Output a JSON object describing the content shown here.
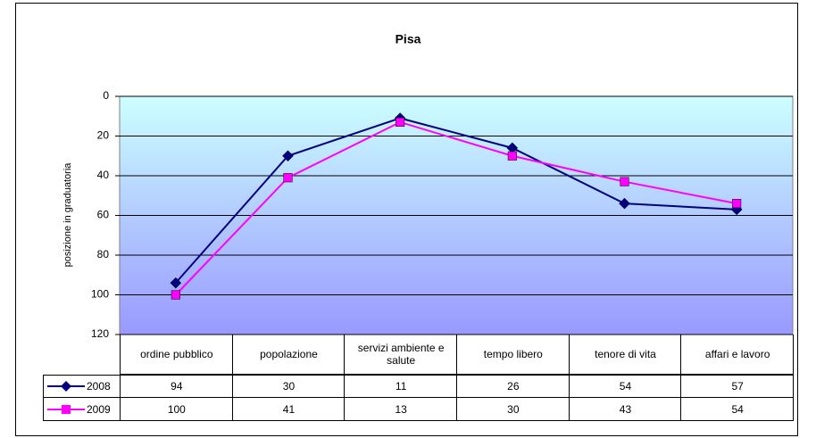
{
  "chart_data": {
    "type": "line",
    "title": "Pisa",
    "y_label": "posizione in graduatoria",
    "categories": [
      "ordine pubblico",
      "popolazione",
      "servizi ambiente e salute",
      "tempo libero",
      "tenore di vita",
      "affari e lavoro"
    ],
    "series": [
      {
        "name": "2008",
        "color": "#000080",
        "marker": "diamond",
        "values": [
          94,
          30,
          11,
          26,
          54,
          57
        ]
      },
      {
        "name": "2009",
        "color": "#ff00ff",
        "marker": "square",
        "values": [
          100,
          41,
          13,
          30,
          43,
          54
        ]
      }
    ],
    "ylim": [
      0,
      120
    ],
    "y_reversed": true,
    "yticks": [
      0,
      20,
      40,
      60,
      80,
      100,
      120
    ],
    "grid": true,
    "data_table": true
  }
}
